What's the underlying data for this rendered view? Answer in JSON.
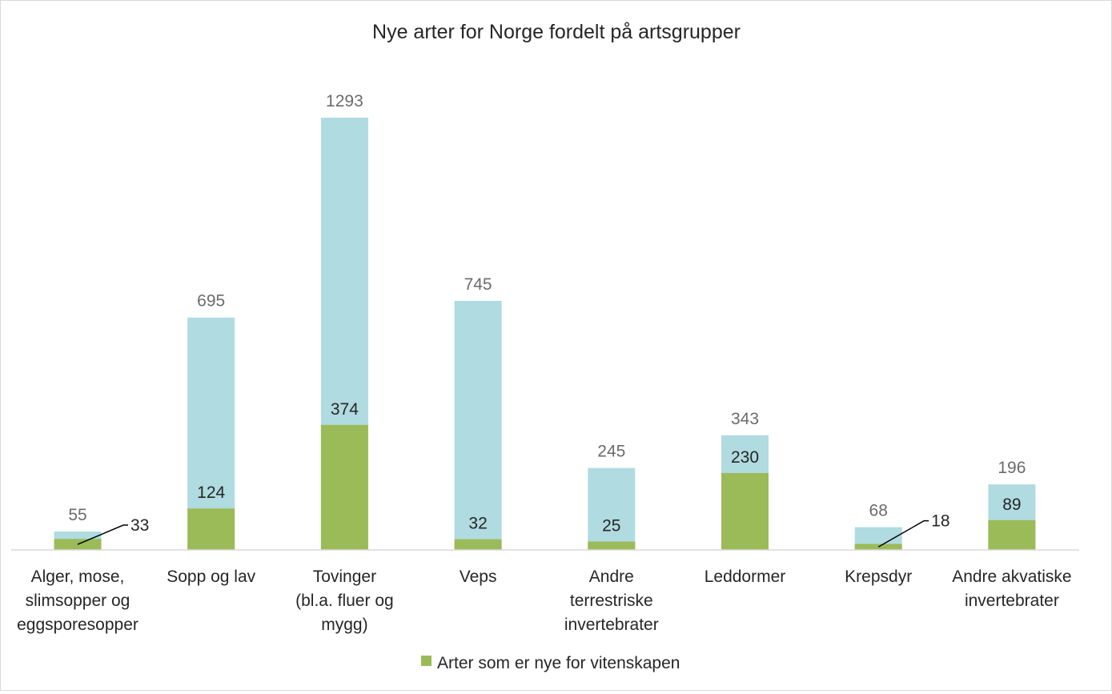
{
  "chart_data": {
    "type": "bar",
    "title": "Nye arter for Norge fordelt på artsgrupper",
    "categories": [
      [
        "Alger, mose,",
        "slimsopper og",
        "eggsporesopper"
      ],
      [
        "Sopp og lav"
      ],
      [
        "Tovinger",
        "(bl.a. fluer og",
        "mygg)"
      ],
      [
        "Veps"
      ],
      [
        "Andre",
        "terrestriske",
        "invertebrater"
      ],
      [
        "Leddormer"
      ],
      [
        "Krepsdyr"
      ],
      [
        "Andre akvatiske",
        "invertebrater"
      ]
    ],
    "series": [
      {
        "values": [
          55,
          695,
          1293,
          745,
          245,
          343,
          68,
          196
        ],
        "color": "#b0dbe0"
      },
      {
        "name": "Arter som er nye for vitenskapen",
        "values": [
          33,
          124,
          374,
          32,
          25,
          230,
          18,
          89
        ],
        "color": "#9bbb59"
      }
    ],
    "ylim": [
      0,
      1400
    ],
    "grid": false,
    "legend_position": "bottom",
    "overlapping_bars": true
  }
}
